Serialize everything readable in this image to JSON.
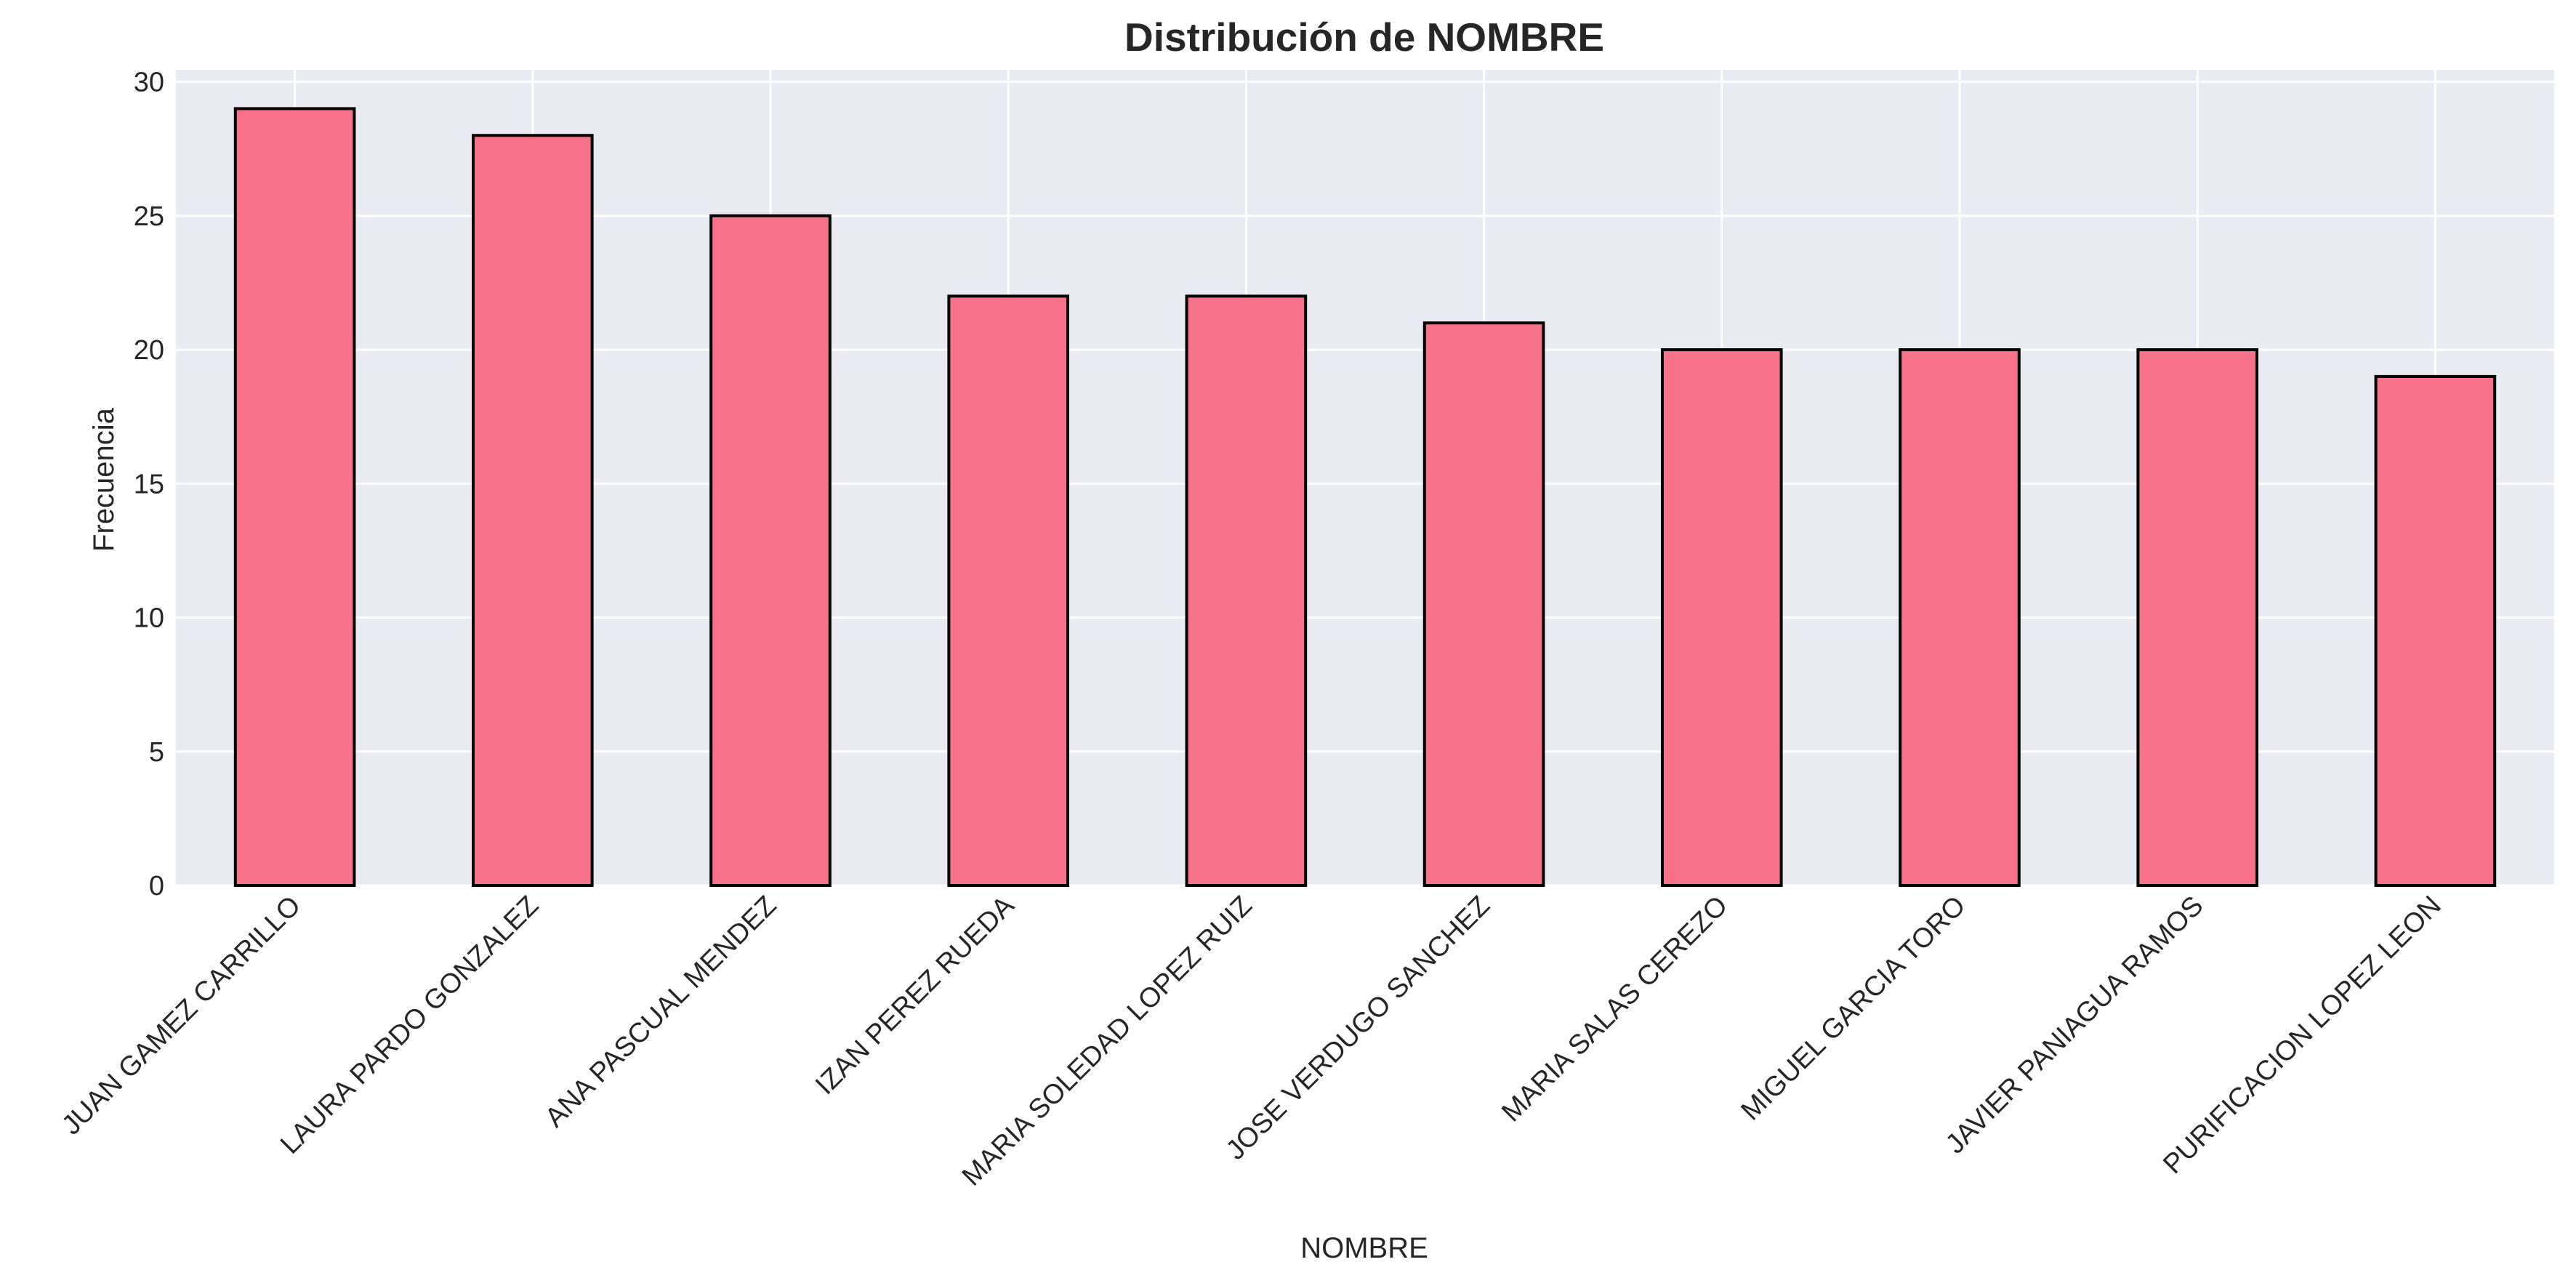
{
  "chart_data": {
    "type": "bar",
    "title": "Distribución de NOMBRE",
    "xlabel": "NOMBRE",
    "ylabel": "Frecuencia",
    "categories": [
      "JUAN GAMEZ CARRILLO",
      "LAURA PARDO GONZALEZ",
      "ANA PASCUAL MENDEZ",
      "IZAN PEREZ RUEDA",
      "MARIA SOLEDAD LOPEZ RUIZ",
      "JOSE VERDUGO SANCHEZ",
      "MARIA SALAS CEREZO",
      "MIGUEL GARCIA TORO",
      "JAVIER PANIAGUA RAMOS",
      "PURIFICACION LOPEZ LEON"
    ],
    "values": [
      29,
      28,
      25,
      22,
      22,
      21,
      20,
      20,
      20,
      19
    ],
    "ylim": [
      0,
      30.45
    ],
    "yticks": [
      0,
      5,
      10,
      15,
      20,
      25,
      30
    ],
    "grid": true,
    "bar_color": "#f77189",
    "bar_edge_color": "#000000",
    "plot_background": "#eaeaf2"
  }
}
